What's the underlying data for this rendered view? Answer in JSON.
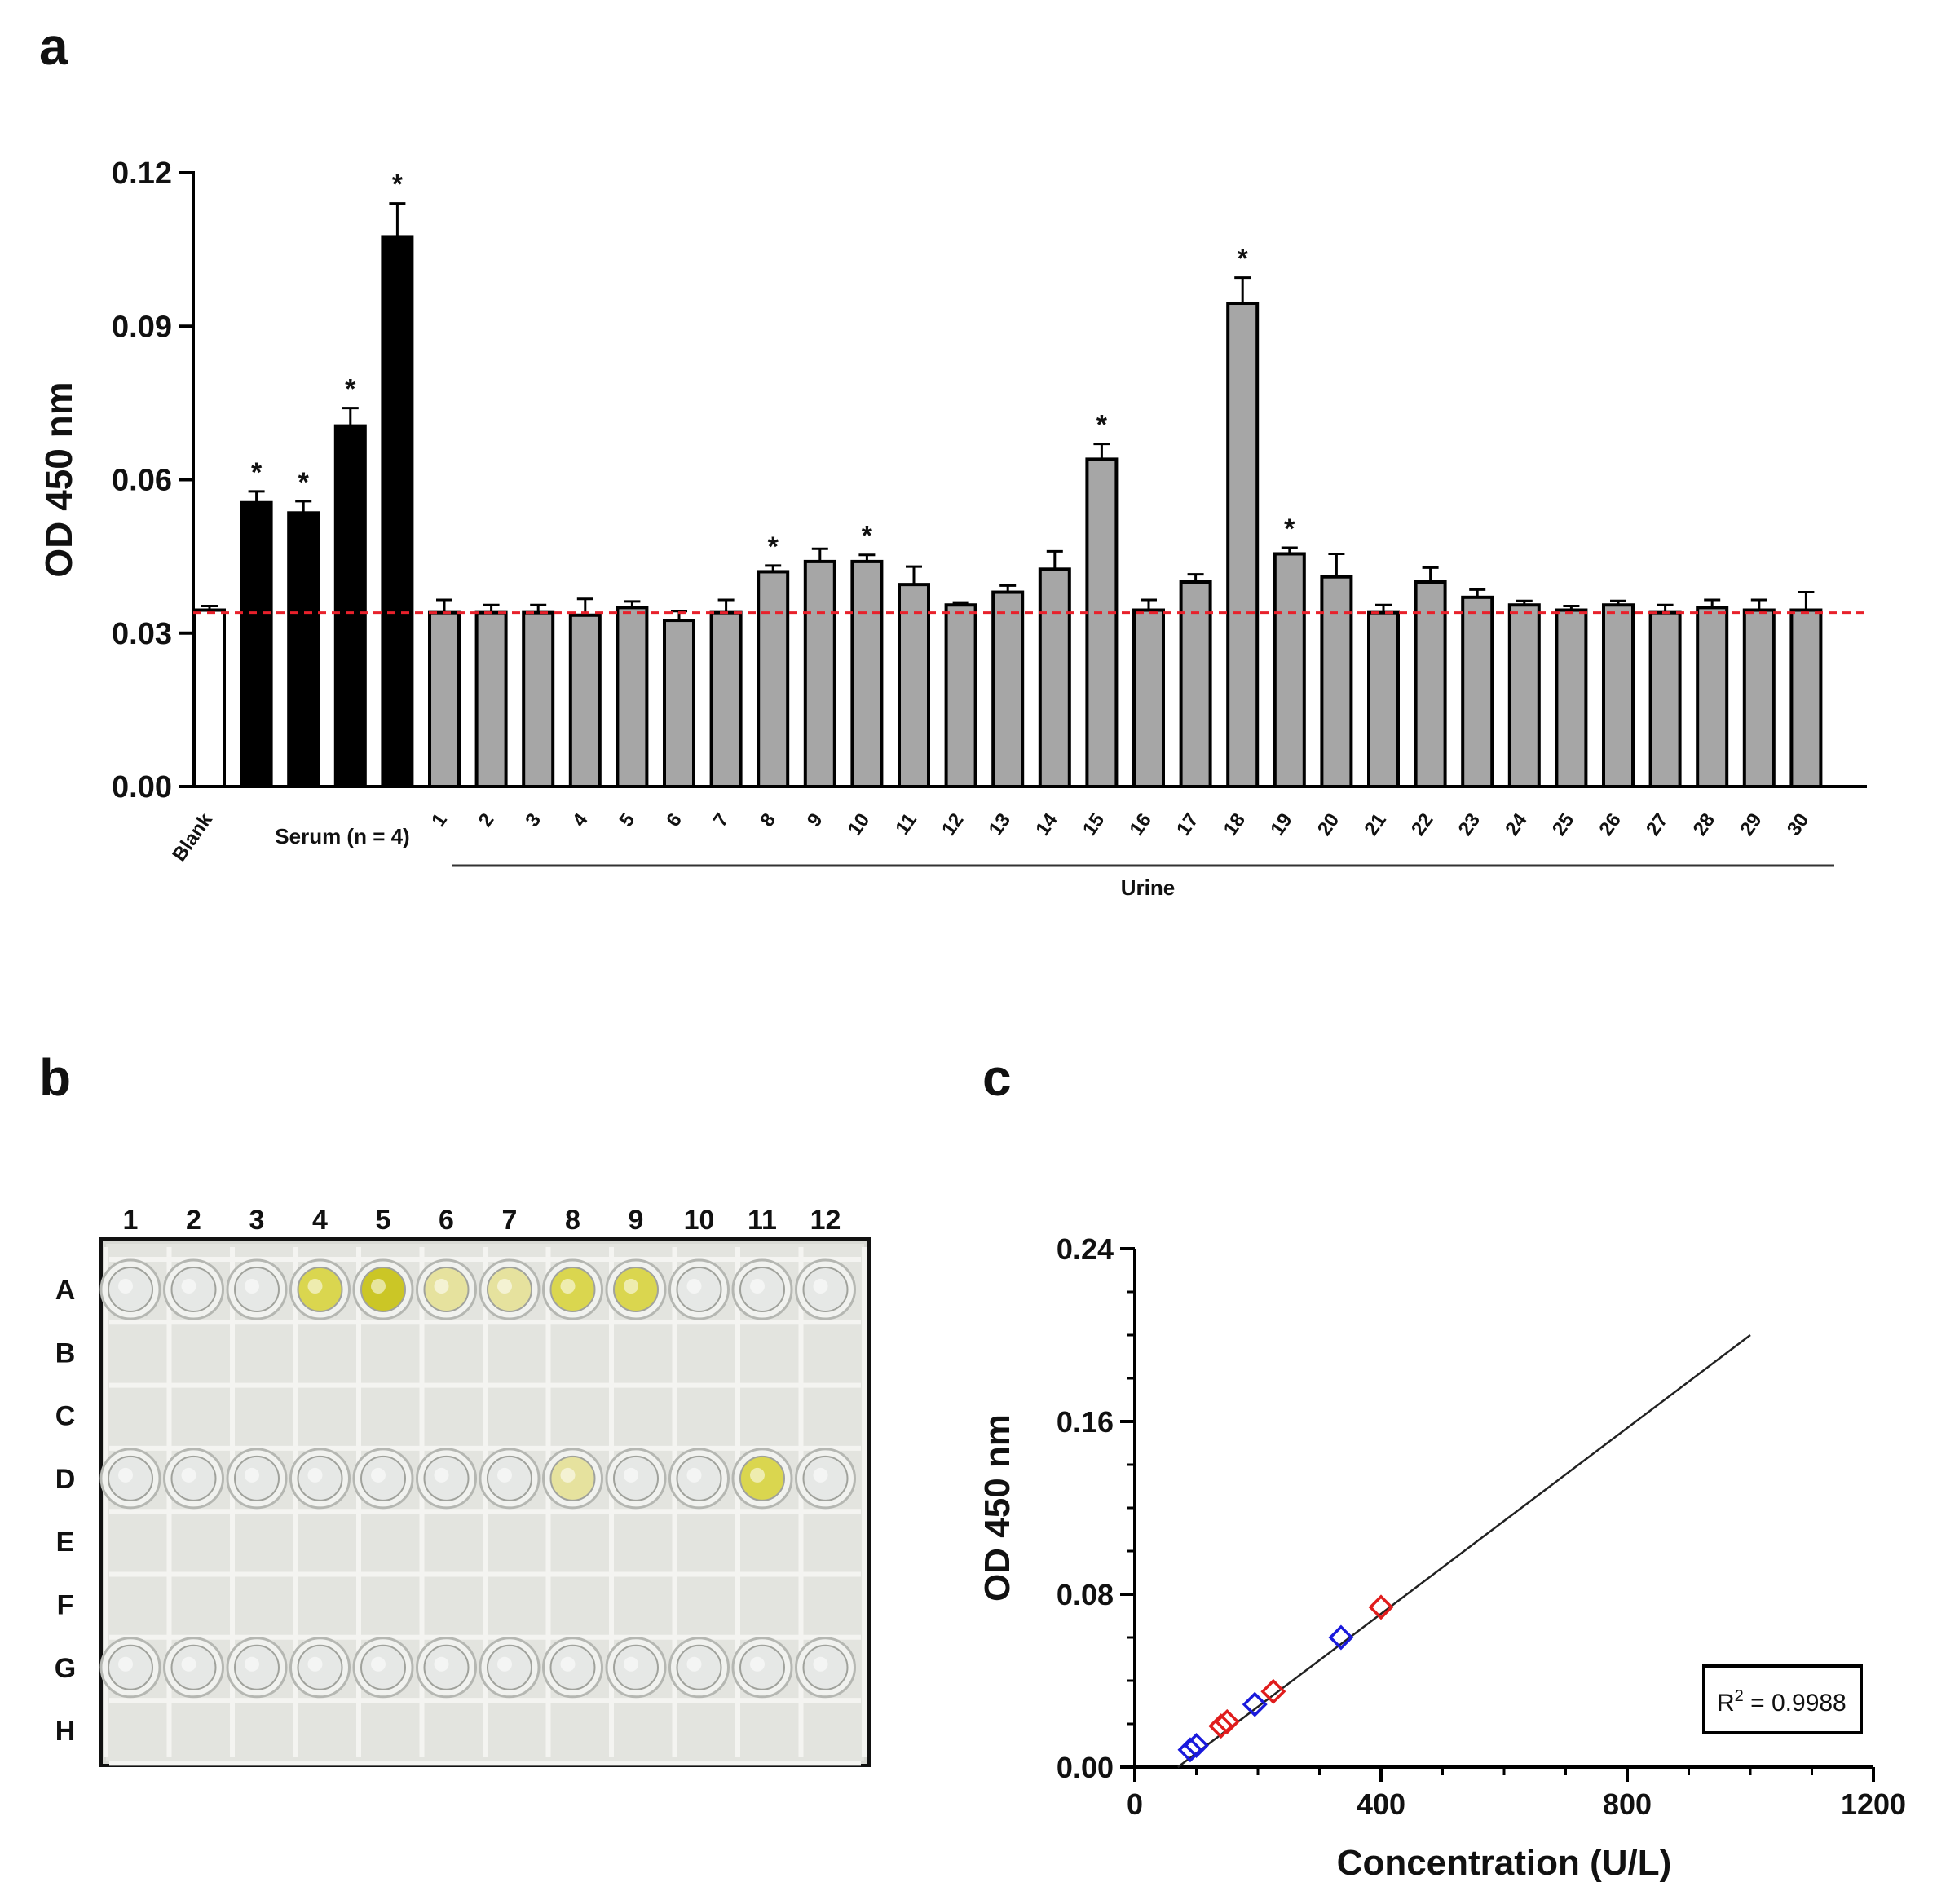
{
  "figure": {
    "panel_letters": {
      "a": "a",
      "b": "b",
      "c": "c"
    }
  },
  "chart_data": [
    {
      "panel": "a",
      "type": "bar",
      "ylabel": "OD 450 nm",
      "xlabel": "",
      "ylim": [
        0,
        0.12
      ],
      "yticks": [
        "0.00",
        "0.03",
        "0.06",
        "0.09",
        "0.12"
      ],
      "ytick_values": [
        0,
        0.03,
        0.06,
        0.09,
        0.12
      ],
      "reference_line": {
        "value": 0.034,
        "color": "#e8212b",
        "style": "dashed"
      },
      "bars": [
        {
          "label": "Blank",
          "value": 0.0345,
          "error": 0.0008,
          "fill": "#ffffff",
          "star": ""
        },
        {
          "label": "",
          "value": 0.0555,
          "error": 0.0022,
          "fill": "#000000",
          "star": "*"
        },
        {
          "label": "",
          "value": 0.0535,
          "error": 0.0023,
          "fill": "#000000",
          "star": "*"
        },
        {
          "label": "",
          "value": 0.0705,
          "error": 0.0035,
          "fill": "#000000",
          "star": "*"
        },
        {
          "label": "",
          "value": 0.1075,
          "error": 0.0065,
          "fill": "#000000",
          "star": "*"
        },
        {
          "label": "1",
          "value": 0.034,
          "error": 0.0025,
          "fill": "#a6a6a6",
          "star": ""
        },
        {
          "label": "2",
          "value": 0.034,
          "error": 0.0015,
          "fill": "#a6a6a6",
          "star": ""
        },
        {
          "label": "3",
          "value": 0.034,
          "error": 0.0015,
          "fill": "#a6a6a6",
          "star": ""
        },
        {
          "label": "4",
          "value": 0.0335,
          "error": 0.0032,
          "fill": "#a6a6a6",
          "star": ""
        },
        {
          "label": "5",
          "value": 0.035,
          "error": 0.0012,
          "fill": "#a6a6a6",
          "star": ""
        },
        {
          "label": "6",
          "value": 0.0325,
          "error": 0.0018,
          "fill": "#a6a6a6",
          "star": ""
        },
        {
          "label": "7",
          "value": 0.034,
          "error": 0.0025,
          "fill": "#a6a6a6",
          "star": ""
        },
        {
          "label": "8",
          "value": 0.042,
          "error": 0.0012,
          "fill": "#a6a6a6",
          "star": "*"
        },
        {
          "label": "9",
          "value": 0.044,
          "error": 0.0025,
          "fill": "#a6a6a6",
          "star": ""
        },
        {
          "label": "10",
          "value": 0.044,
          "error": 0.0013,
          "fill": "#a6a6a6",
          "star": "*"
        },
        {
          "label": "11",
          "value": 0.0395,
          "error": 0.0035,
          "fill": "#a6a6a6",
          "star": ""
        },
        {
          "label": "12",
          "value": 0.0355,
          "error": 0.0005,
          "fill": "#a6a6a6",
          "star": ""
        },
        {
          "label": "13",
          "value": 0.038,
          "error": 0.0013,
          "fill": "#a6a6a6",
          "star": ""
        },
        {
          "label": "14",
          "value": 0.0425,
          "error": 0.0035,
          "fill": "#a6a6a6",
          "star": ""
        },
        {
          "label": "15",
          "value": 0.064,
          "error": 0.003,
          "fill": "#a6a6a6",
          "star": "*"
        },
        {
          "label": "16",
          "value": 0.0345,
          "error": 0.002,
          "fill": "#a6a6a6",
          "star": ""
        },
        {
          "label": "17",
          "value": 0.04,
          "error": 0.0015,
          "fill": "#a6a6a6",
          "star": ""
        },
        {
          "label": "18",
          "value": 0.0945,
          "error": 0.005,
          "fill": "#a6a6a6",
          "star": "*"
        },
        {
          "label": "19",
          "value": 0.0455,
          "error": 0.0012,
          "fill": "#a6a6a6",
          "star": "*"
        },
        {
          "label": "20",
          "value": 0.041,
          "error": 0.0045,
          "fill": "#a6a6a6",
          "star": ""
        },
        {
          "label": "21",
          "value": 0.034,
          "error": 0.0015,
          "fill": "#a6a6a6",
          "star": ""
        },
        {
          "label": "22",
          "value": 0.04,
          "error": 0.0028,
          "fill": "#a6a6a6",
          "star": ""
        },
        {
          "label": "23",
          "value": 0.037,
          "error": 0.0015,
          "fill": "#a6a6a6",
          "star": ""
        },
        {
          "label": "24",
          "value": 0.0355,
          "error": 0.0008,
          "fill": "#a6a6a6",
          "star": ""
        },
        {
          "label": "25",
          "value": 0.0345,
          "error": 0.0008,
          "fill": "#a6a6a6",
          "star": ""
        },
        {
          "label": "26",
          "value": 0.0355,
          "error": 0.0008,
          "fill": "#a6a6a6",
          "star": ""
        },
        {
          "label": "27",
          "value": 0.034,
          "error": 0.0015,
          "fill": "#a6a6a6",
          "star": ""
        },
        {
          "label": "28",
          "value": 0.035,
          "error": 0.0015,
          "fill": "#a6a6a6",
          "star": ""
        },
        {
          "label": "29",
          "value": 0.0345,
          "error": 0.002,
          "fill": "#a6a6a6",
          "star": ""
        },
        {
          "label": "30",
          "value": 0.0345,
          "error": 0.0035,
          "fill": "#a6a6a6",
          "star": ""
        }
      ],
      "group_labels": {
        "serum": "Serum (n = 4)",
        "urine": "Urine"
      }
    },
    {
      "panel": "c",
      "type": "scatter",
      "xlabel": "Concentration (U/L)",
      "ylabel": "OD 450 nm",
      "xlim": [
        0,
        1200
      ],
      "ylim": [
        0,
        0.24
      ],
      "xticks": [
        "0",
        "400",
        "800",
        "1200"
      ],
      "xtick_values": [
        0,
        400,
        800,
        1200
      ],
      "yticks": [
        "0.00",
        "0.08",
        "0.16",
        "0.24"
      ],
      "ytick_values": [
        0,
        0.08,
        0.16,
        0.24
      ],
      "fit_line": {
        "x": [
          70,
          1000
        ],
        "y": [
          0,
          0.2
        ]
      },
      "annotation": {
        "r2_prefix": "R",
        "r2_sup": "2",
        "r2_value": " = 0.9988"
      },
      "series": [
        {
          "name": "blue",
          "color": "#1a1adc",
          "x": [
            90,
            100,
            195,
            335
          ],
          "y": [
            0.008,
            0.01,
            0.029,
            0.06
          ]
        },
        {
          "name": "red",
          "color": "#e01c1c",
          "x": [
            140,
            150,
            225,
            400
          ],
          "y": [
            0.019,
            0.021,
            0.035,
            0.074
          ]
        }
      ]
    }
  ],
  "plate": {
    "columns": [
      "1",
      "2",
      "3",
      "4",
      "5",
      "6",
      "7",
      "8",
      "9",
      "10",
      "11",
      "12"
    ],
    "rows": [
      "A",
      "B",
      "C",
      "D",
      "E",
      "F",
      "G",
      "H"
    ],
    "filled_rows": {
      "A": [
        "clear",
        "clear",
        "clear",
        "yellow-medium",
        "yellow-strong",
        "yellow-light",
        "yellow-light",
        "yellow-medium",
        "yellow-medium",
        "clear",
        "clear",
        "clear"
      ],
      "D": [
        "clear",
        "clear",
        "clear",
        "clear",
        "clear",
        "clear",
        "clear",
        "yellow-light",
        "clear",
        "clear",
        "yellow-medium",
        "clear"
      ],
      "G": [
        "clear",
        "clear",
        "clear",
        "clear",
        "clear",
        "clear",
        "clear",
        "clear",
        "clear",
        "clear",
        "clear",
        "clear"
      ]
    },
    "well_colors": {
      "clear": "#e6e8e6",
      "yellow-light": "#e6e29a",
      "yellow-medium": "#d9d547",
      "yellow-strong": "#c9c41c"
    }
  }
}
